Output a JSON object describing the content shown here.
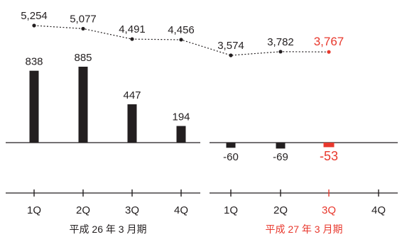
{
  "chart_data": {
    "type": "bar",
    "title": "",
    "xlabel": "",
    "ylabel": "",
    "grid": false,
    "legend": "none",
    "periods": [
      {
        "label": "平成 26 年 3 月期",
        "categories": [
          "1Q",
          "2Q",
          "3Q",
          "4Q"
        ],
        "bar_values": [
          838,
          885,
          447,
          194
        ],
        "line_values": [
          5254,
          5077,
          4491,
          4456
        ],
        "bar_labels": [
          "838",
          "885",
          "447",
          "194"
        ],
        "line_labels": [
          "5,254",
          "5,077",
          "4,491",
          "4,456"
        ]
      },
      {
        "label": "平成 27 年 3 月期",
        "categories": [
          "1Q",
          "2Q",
          "3Q",
          "4Q"
        ],
        "bar_values": [
          -60,
          -69,
          -53,
          null
        ],
        "line_values": [
          3574,
          3782,
          3767,
          null
        ],
        "bar_labels": [
          "-60",
          "-69",
          "-53",
          ""
        ],
        "line_labels": [
          "3,574",
          "3,782",
          "3,767",
          ""
        ],
        "highlight_index": 2
      }
    ],
    "colors": {
      "bar": "#231f20",
      "line": "#231f20",
      "highlight": "#e8382d",
      "axis": "#231f20",
      "text": "#231f20"
    }
  }
}
